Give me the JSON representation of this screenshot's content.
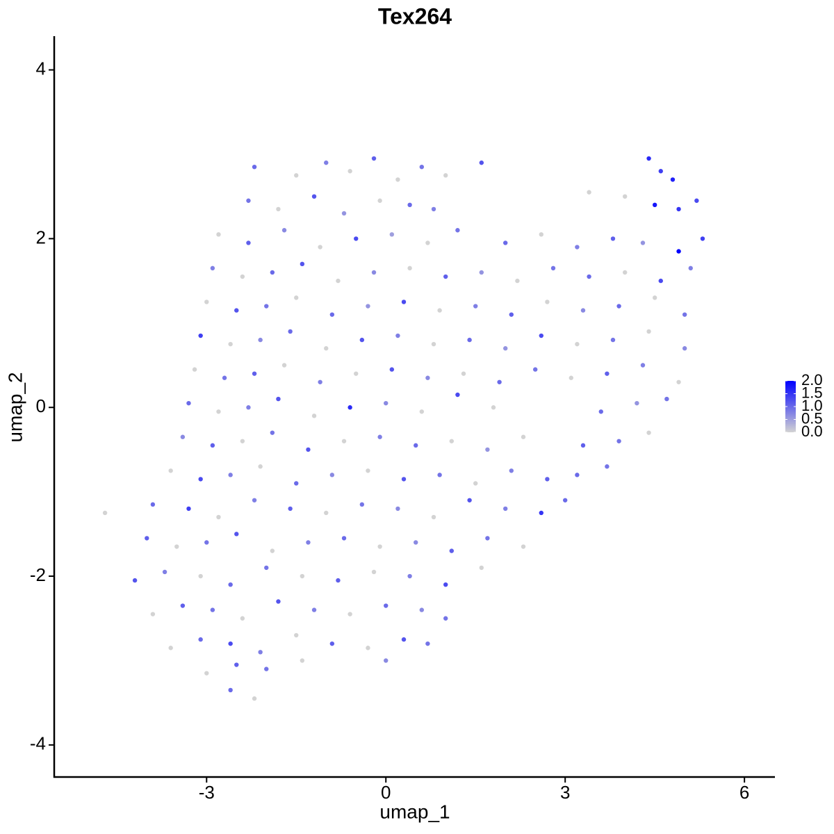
{
  "chart_data": {
    "type": "scatter",
    "title": "Tex264",
    "x_label": "umap_1",
    "y_label": "umap_2",
    "xlim": [
      -5.55,
      6.51
    ],
    "ylim": [
      -4.38,
      4.4
    ],
    "xticks": [
      -3,
      0,
      3,
      6
    ],
    "yticks": [
      -4,
      -2,
      0,
      2,
      4
    ],
    "low_color": "#d3d3d3",
    "high_color": "#0000ff",
    "color_lim": [
      0,
      2
    ],
    "color_ticks": [
      {
        "value": 0,
        "label": "0.0"
      },
      {
        "value": 0.5,
        "label": "0.5"
      },
      {
        "value": 1,
        "label": "1.0"
      },
      {
        "value": 1.5,
        "label": "1.5"
      },
      {
        "value": 2,
        "label": "2.0"
      }
    ],
    "x": [
      -2.2,
      -1.5,
      -1.0,
      -0.6,
      -0.2,
      0.2,
      0.6,
      1.0,
      1.6,
      4.4,
      4.6,
      4.8,
      -2.3,
      -1.8,
      -1.2,
      -0.7,
      -0.1,
      0.4,
      0.8,
      3.4,
      4.0,
      4.5,
      4.9,
      5.2,
      -2.8,
      -2.3,
      -1.7,
      -1.1,
      -0.5,
      0.1,
      0.7,
      1.2,
      2.0,
      2.6,
      3.2,
      3.8,
      4.3,
      4.9,
      5.3,
      -2.9,
      -2.4,
      -1.9,
      -1.4,
      -0.8,
      -0.2,
      0.4,
      1.0,
      1.6,
      2.2,
      2.8,
      3.4,
      4.0,
      4.6,
      5.1,
      -3.0,
      -2.5,
      -2.0,
      -1.5,
      -0.9,
      -0.3,
      0.3,
      0.9,
      1.5,
      2.1,
      2.7,
      3.3,
      3.9,
      4.5,
      5.0,
      -3.1,
      -2.6,
      -2.1,
      -1.6,
      -1.0,
      -0.4,
      0.2,
      0.8,
      1.4,
      2.0,
      2.6,
      3.2,
      3.8,
      4.4,
      5.0,
      -3.2,
      -2.7,
      -2.2,
      -1.7,
      -1.1,
      -0.5,
      0.1,
      0.7,
      1.3,
      1.9,
      2.5,
      3.1,
      3.7,
      4.3,
      4.9,
      -3.3,
      -2.8,
      -2.3,
      -1.8,
      -1.2,
      -0.6,
      0.0,
      0.6,
      1.2,
      1.8,
      3.6,
      4.2,
      4.7,
      -3.4,
      -2.9,
      -2.4,
      -1.9,
      -1.3,
      -0.7,
      -0.1,
      0.5,
      1.1,
      1.7,
      2.3,
      3.3,
      3.9,
      4.4,
      -3.6,
      -3.1,
      -2.6,
      -2.1,
      -1.5,
      -0.9,
      -0.3,
      0.3,
      0.9,
      1.5,
      2.1,
      2.7,
      3.2,
      3.7,
      -4.7,
      -3.9,
      -3.3,
      -2.8,
      -2.2,
      -1.6,
      -1.0,
      -0.4,
      0.2,
      0.8,
      1.4,
      2.0,
      2.6,
      3.0,
      -4.0,
      -3.5,
      -3.0,
      -2.5,
      -1.9,
      -1.3,
      -0.7,
      -0.1,
      0.5,
      1.1,
      1.7,
      2.3,
      -4.2,
      -3.7,
      -3.1,
      -2.6,
      -2.0,
      -1.4,
      -0.8,
      -0.2,
      0.4,
      1.0,
      1.6,
      -3.9,
      -3.4,
      -2.9,
      -2.4,
      -1.8,
      -1.2,
      -0.6,
      0.0,
      0.6,
      1.0,
      -3.6,
      -3.1,
      -2.6,
      -2.1,
      -1.5,
      -0.9,
      -0.3,
      0.3,
      0.7,
      -3.0,
      -2.5,
      -2.0,
      -1.4,
      0.0,
      -2.6,
      -2.2
    ],
    "y": [
      2.85,
      2.75,
      2.9,
      2.8,
      2.95,
      2.7,
      2.85,
      2.75,
      2.9,
      2.95,
      2.8,
      2.7,
      2.45,
      2.35,
      2.5,
      2.3,
      2.45,
      2.4,
      2.35,
      2.55,
      2.5,
      2.4,
      2.35,
      2.45,
      2.05,
      1.95,
      2.1,
      1.9,
      2.0,
      2.05,
      1.95,
      2.1,
      1.95,
      2.05,
      1.9,
      2.0,
      1.95,
      1.85,
      2.0,
      1.65,
      1.55,
      1.6,
      1.7,
      1.5,
      1.6,
      1.65,
      1.55,
      1.6,
      1.5,
      1.65,
      1.55,
      1.6,
      1.5,
      1.65,
      1.25,
      1.15,
      1.2,
      1.3,
      1.1,
      1.2,
      1.25,
      1.15,
      1.2,
      1.1,
      1.25,
      1.15,
      1.2,
      1.3,
      1.1,
      0.85,
      0.75,
      0.8,
      0.9,
      0.7,
      0.8,
      0.85,
      0.75,
      0.8,
      0.7,
      0.85,
      0.75,
      0.8,
      0.9,
      0.7,
      0.45,
      0.35,
      0.4,
      0.5,
      0.3,
      0.4,
      0.45,
      0.35,
      0.4,
      0.3,
      0.45,
      0.35,
      0.4,
      0.5,
      0.3,
      0.05,
      -0.05,
      0.0,
      0.1,
      -0.1,
      0.0,
      0.05,
      -0.05,
      0.15,
      0.0,
      -0.05,
      0.05,
      0.1,
      -0.35,
      -0.45,
      -0.4,
      -0.3,
      -0.5,
      -0.4,
      -0.35,
      -0.45,
      -0.4,
      -0.5,
      -0.35,
      -0.45,
      -0.4,
      -0.3,
      -0.75,
      -0.85,
      -0.8,
      -0.7,
      -0.9,
      -0.8,
      -0.75,
      -0.85,
      -0.8,
      -0.9,
      -0.75,
      -0.85,
      -0.8,
      -0.7,
      -1.25,
      -1.15,
      -1.2,
      -1.3,
      -1.1,
      -1.2,
      -1.25,
      -1.15,
      -1.2,
      -1.3,
      -1.1,
      -1.2,
      -1.25,
      -1.1,
      -1.55,
      -1.65,
      -1.6,
      -1.5,
      -1.7,
      -1.6,
      -1.55,
      -1.65,
      -1.6,
      -1.7,
      -1.55,
      -1.65,
      -2.05,
      -1.95,
      -2.0,
      -2.1,
      -1.9,
      -2.0,
      -2.05,
      -1.95,
      -2.0,
      -2.1,
      -1.9,
      -2.45,
      -2.35,
      -2.4,
      -2.5,
      -2.3,
      -2.4,
      -2.45,
      -2.35,
      -2.4,
      -2.5,
      -2.85,
      -2.75,
      -2.8,
      -2.9,
      -2.7,
      -2.8,
      -2.85,
      -2.75,
      -2.8,
      -3.15,
      -3.05,
      -3.1,
      -3.0,
      -3.0,
      -3.35,
      -3.45
    ],
    "expression": [
      1.0,
      0,
      0.8,
      0,
      1.1,
      0,
      0.9,
      0,
      1.2,
      1.6,
      1.4,
      1.7,
      0.9,
      0,
      1.2,
      0.6,
      0,
      1.0,
      0.8,
      0,
      0,
      1.8,
      1.5,
      1.3,
      0,
      1.1,
      0.7,
      0,
      1.3,
      0.5,
      0,
      0.9,
      1.0,
      0,
      0.8,
      1.1,
      0.6,
      2.0,
      1.4,
      0.8,
      0,
      1.0,
      1.2,
      0,
      0.7,
      0,
      1.1,
      0.6,
      0,
      0.9,
      1.0,
      0,
      1.3,
      0.8,
      0,
      1.2,
      0.9,
      0,
      1.0,
      0.6,
      1.3,
      0,
      0.8,
      1.1,
      0,
      0.7,
      1.0,
      0,
      0.9,
      1.4,
      0,
      0.7,
      1.0,
      0,
      1.2,
      0.8,
      0,
      1.0,
      0.6,
      1.3,
      0,
      0.9,
      0,
      0.7,
      0,
      0.9,
      1.1,
      0,
      0.8,
      0,
      1.2,
      0.7,
      0,
      1.0,
      0.9,
      0,
      1.1,
      0.8,
      0,
      1.0,
      0,
      0.8,
      1.2,
      0,
      1.6,
      0.7,
      0,
      1.3,
      0,
      1.0,
      0.6,
      0.9,
      0.7,
      1.1,
      0,
      0.9,
      1.2,
      0,
      0.8,
      1.0,
      0,
      0.6,
      0,
      1.1,
      0.9,
      0,
      0,
      1.3,
      0.8,
      0,
      1.0,
      0.7,
      0,
      1.2,
      0.9,
      0,
      0.8,
      1.1,
      1.0,
      0.9,
      0,
      1.0,
      1.4,
      0,
      0.8,
      1.1,
      0,
      0.9,
      0.7,
      0,
      1.2,
      0.8,
      1.5,
      1.0,
      1.1,
      0,
      0.9,
      1.2,
      0,
      0.8,
      1.0,
      0,
      0.7,
      1.1,
      0.9,
      0,
      1.2,
      0.8,
      0,
      1.0,
      0.9,
      0,
      1.1,
      0,
      0.8,
      1.3,
      0,
      0,
      1.1,
      0.9,
      0,
      1.2,
      0.8,
      0,
      1.0,
      0.7,
      0.9,
      0,
      1.0,
      1.3,
      0.8,
      0,
      1.1,
      0,
      1.2,
      0.9,
      0,
      1.1,
      0.9,
      0,
      0.7,
      1.0,
      0
    ]
  }
}
